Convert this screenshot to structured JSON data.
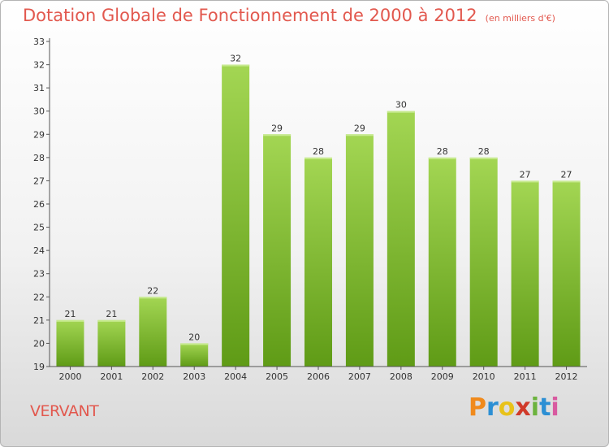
{
  "chart_data": {
    "type": "bar",
    "title": "Dotation Globale de Fonctionnement de 2000 à 2012",
    "subtitle": "(en milliers d'€)",
    "categories": [
      "2000",
      "2001",
      "2002",
      "2003",
      "2004",
      "2005",
      "2006",
      "2007",
      "2008",
      "2009",
      "2010",
      "2011",
      "2012"
    ],
    "values": [
      21,
      21,
      22,
      20,
      32,
      29,
      28,
      29,
      30,
      28,
      28,
      27,
      27
    ],
    "ylim": [
      19,
      33
    ],
    "yticks": [
      19,
      20,
      21,
      22,
      23,
      24,
      25,
      26,
      27,
      28,
      29,
      30,
      31,
      32,
      33
    ],
    "grid": false,
    "bar_color": "#7fbe2f",
    "bar_color_light": "#a3d653",
    "bar_color_dark": "#5f9b16"
  },
  "footer": {
    "location": "VERVANT",
    "brand_letters": [
      {
        "ch": "P",
        "color": "#f08a1c"
      },
      {
        "ch": "r",
        "color": "#2c8fd4"
      },
      {
        "ch": "o",
        "color": "#e8c21a"
      },
      {
        "ch": "x",
        "color": "#d03a2a"
      },
      {
        "ch": "i",
        "color": "#6cb33e"
      },
      {
        "ch": "t",
        "color": "#2c8fd4"
      },
      {
        "ch": "i",
        "color": "#d85aa0"
      }
    ]
  },
  "colors": {
    "title": "#e2584e",
    "axis": "#333333"
  }
}
